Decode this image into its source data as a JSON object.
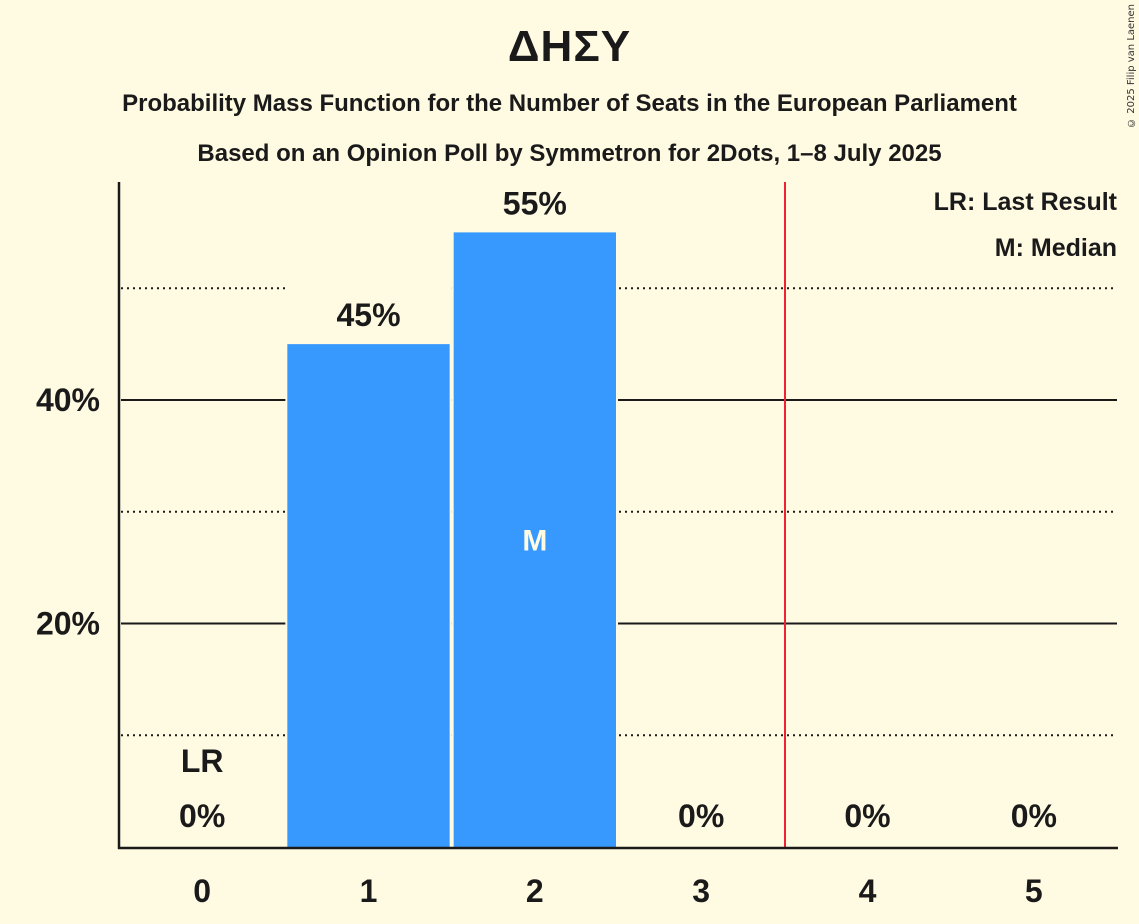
{
  "header": {
    "title": "ΔΗΣΥ",
    "subtitle": "Probability Mass Function for the Number of Seats in the European Parliament",
    "subtitle2": "Based on an Opinion Poll by Symmetron for 2Dots, 1–8 July 2025",
    "copyright": "© 2025 Filip van Laenen"
  },
  "legend": {
    "lr": "LR: Last Result",
    "m": "M: Median"
  },
  "colors": {
    "background": "#fffae2",
    "bar": "#3799fe",
    "last_result_line": "#ee2233",
    "text": "#1a1a1a"
  },
  "chart_data": {
    "type": "bar",
    "title": "ΔΗΣΥ",
    "subtitle": "Probability Mass Function for the Number of Seats in the European Parliament",
    "xlabel": "",
    "ylabel": "",
    "categories": [
      "0",
      "1",
      "2",
      "3",
      "4",
      "5"
    ],
    "values": [
      0,
      45,
      55,
      0,
      0,
      0
    ],
    "value_labels": [
      "0%",
      "45%",
      "55%",
      "0%",
      "0%",
      "0%"
    ],
    "y_ticks": [
      "20%",
      "40%"
    ],
    "y_tick_values": [
      20,
      40
    ],
    "minor_gridlines": [
      10,
      30,
      50
    ],
    "ylim": [
      0,
      59
    ],
    "last_result": 0,
    "last_result_label": "LR",
    "median": 2,
    "median_label": "M",
    "legend_position": "top-right",
    "grid": true
  }
}
